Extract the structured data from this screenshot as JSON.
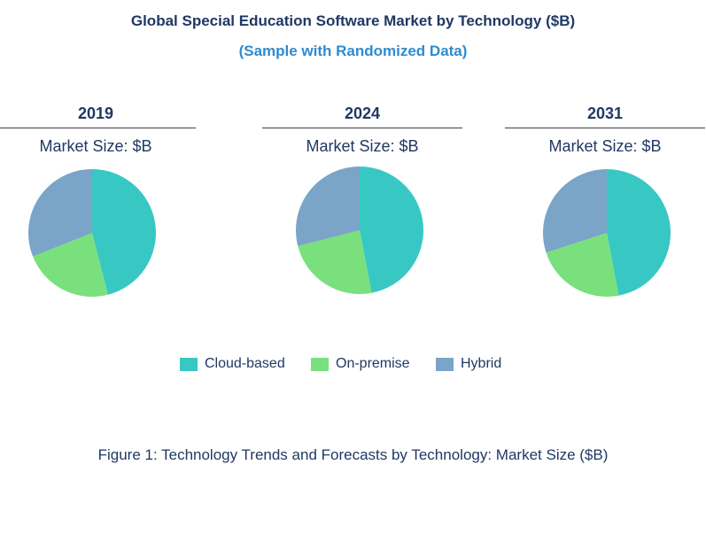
{
  "title": "Global Special Education Software Market by Technology ($B)",
  "subtitle": "(Sample with Randomized Data)",
  "caption": "Figure 1: Technology Trends and Forecasts by Technology: Market Size ($B)",
  "colors": {
    "Cloud-based": "#38c8c4",
    "On-premise": "#79e07d",
    "Hybrid": "#7aa4c8"
  },
  "chart_data": [
    {
      "type": "pie",
      "title": "2019",
      "subtitle": "Market Size: $B",
      "categories": [
        "Cloud-based",
        "On-premise",
        "Hybrid"
      ],
      "values": [
        46,
        23,
        31
      ],
      "unit": "approx. share %"
    },
    {
      "type": "pie",
      "title": "2024",
      "subtitle": "Market Size: $B",
      "categories": [
        "Cloud-based",
        "On-premise",
        "Hybrid"
      ],
      "values": [
        47,
        24,
        29
      ],
      "unit": "approx. share %"
    },
    {
      "type": "pie",
      "title": "2031",
      "subtitle": "Market Size: $B",
      "categories": [
        "Cloud-based",
        "On-premise",
        "Hybrid"
      ],
      "values": [
        47,
        23,
        30
      ],
      "unit": "approx. share %"
    }
  ],
  "legend": [
    "Cloud-based",
    "On-premise",
    "Hybrid"
  ]
}
